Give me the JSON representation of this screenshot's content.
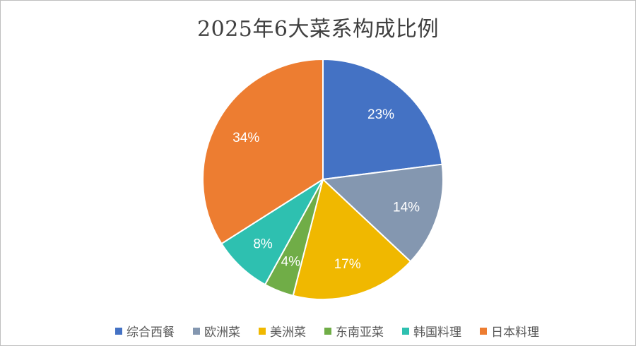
{
  "chart_data": {
    "type": "pie",
    "title": "2025年6大菜系构成比例",
    "categories": [
      "综合西餐",
      "欧洲菜",
      "美洲菜",
      "东南亚菜",
      "韩国料理",
      "日本料理"
    ],
    "values": [
      23,
      14,
      17,
      4,
      8,
      34
    ],
    "data_labels": [
      "23%",
      "14%",
      "17%",
      "4%",
      "8%",
      "34%"
    ],
    "colors": [
      "#4472c4",
      "#8497b0",
      "#f0b800",
      "#70ad47",
      "#2ec0b0",
      "#ed7d31"
    ],
    "start_angle_deg": 0,
    "direction": "clockwise",
    "legend_position": "bottom"
  }
}
